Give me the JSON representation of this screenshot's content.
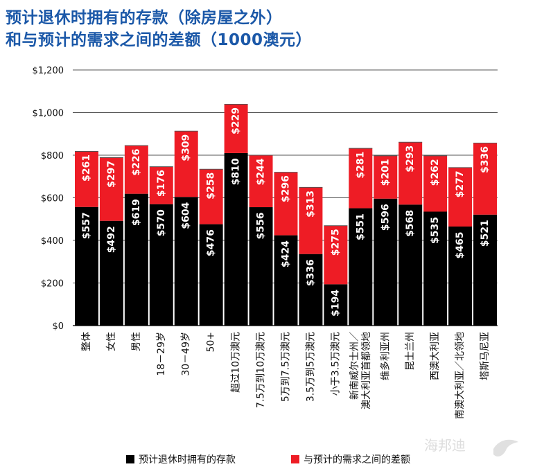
{
  "title_line1": "预计退休时拥有的存款（除房屋之外）",
  "title_line2": "和与预计的需求之间的差额（1000澳元）",
  "chart_data": {
    "type": "bar",
    "stacked": true,
    "categories": [
      "整体",
      "女性",
      "男性",
      "18－29岁",
      "30－49岁",
      "50+",
      "超过10万澳元",
      "7.5万到10万澳元",
      "5万到7.5万澳元",
      "3.5万到5万澳元",
      "小于3.5万澳元",
      "新南威尔士州／澳大利亚首都领地",
      "维多利亚州",
      "昆士兰州",
      "西澳大利亚",
      "南澳大利亚／北领地",
      "塔斯马尼亚"
    ],
    "category_lines": [
      [
        "整体"
      ],
      [
        "女性"
      ],
      [
        "男性"
      ],
      [
        "18－29岁"
      ],
      [
        "30－49岁"
      ],
      [
        "50+"
      ],
      [
        "超过10万澳元"
      ],
      [
        "7.5万到10万澳元"
      ],
      [
        "5万到7.5万澳元"
      ],
      [
        "3.5万到5万澳元"
      ],
      [
        "小于3.5万澳元"
      ],
      [
        "新南威尔士州／",
        "澳大利亚首都领地"
      ],
      [
        "维多利亚州"
      ],
      [
        "昆士兰州"
      ],
      [
        "西澳大利亚"
      ],
      [
        "南澳大利亚／北领地"
      ],
      [
        "塔斯马尼亚"
      ]
    ],
    "series": [
      {
        "name": "预计退休时拥有的存款",
        "color": "#000000",
        "values": [
          557,
          492,
          619,
          570,
          604,
          476,
          810,
          556,
          424,
          336,
          194,
          551,
          596,
          568,
          535,
          465,
          521
        ],
        "labels": [
          "$557",
          "$492",
          "$619",
          "$570",
          "$604",
          "$476",
          "$810",
          "$556",
          "$424",
          "$336",
          "$194",
          "$551",
          "$596",
          "$568",
          "$535",
          "$465",
          "$521"
        ]
      },
      {
        "name": "与预计的需求之间的差额",
        "color": "#ee1c25",
        "values": [
          261,
          297,
          226,
          176,
          309,
          258,
          229,
          244,
          296,
          313,
          275,
          281,
          201,
          293,
          262,
          277,
          336
        ],
        "labels": [
          "$261",
          "$297",
          "$226",
          "$176",
          "$309",
          "$258",
          "$229",
          "$244",
          "$296",
          "$313",
          "$275",
          "$281",
          "$201",
          "$293",
          "$262",
          "$277",
          "$336"
        ]
      }
    ],
    "ylim": [
      0,
      1200
    ],
    "yticks": [
      0,
      200,
      400,
      600,
      800,
      1000,
      1200
    ],
    "ytick_labels": [
      "$0",
      "$200",
      "$400",
      "$600",
      "$800",
      "$1,000",
      "$1,200"
    ],
    "grid": true,
    "legend_position": "bottom"
  },
  "legend": {
    "items": [
      {
        "label": "预计退休时拥有的存款",
        "color": "#000000"
      },
      {
        "label": "与预计的需求之间的差额",
        "color": "#ee1c25"
      }
    ]
  }
}
